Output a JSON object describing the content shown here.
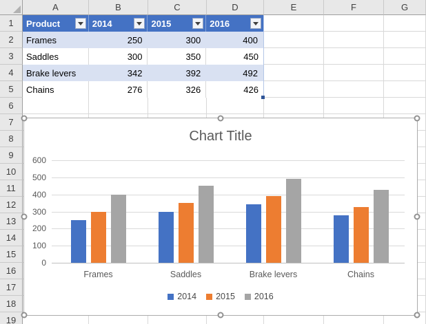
{
  "colors": {
    "table_header_bg": "#4472C4",
    "table_band_bg": "#D9E1F2",
    "table_border_accent": "#B4C6E7",
    "series_2014": "#4472C4",
    "series_2015": "#ED7D31",
    "series_2016": "#A5A5A5",
    "chart_text": "#595959",
    "sheet_header_bg": "#E8E8E8"
  },
  "spreadsheet": {
    "column_headers": [
      "A",
      "B",
      "C",
      "D",
      "E",
      "F",
      "G"
    ],
    "row_headers": [
      "1",
      "2",
      "3",
      "4",
      "5",
      "6",
      "7",
      "8",
      "9",
      "10",
      "11",
      "12",
      "13",
      "14",
      "15",
      "16",
      "17",
      "18",
      "19"
    ],
    "table": {
      "columns": [
        "Product",
        "2014",
        "2015",
        "2016"
      ],
      "filter_icon": "filter-dropdown-arrow",
      "rows": [
        {
          "name": "Frames",
          "values": [
            "250",
            "300",
            "400"
          ]
        },
        {
          "name": "Saddles",
          "values": [
            "300",
            "350",
            "450"
          ]
        },
        {
          "name": "Brake levers",
          "values": [
            "342",
            "392",
            "492"
          ]
        },
        {
          "name": "Chains",
          "values": [
            "276",
            "326",
            "426"
          ]
        }
      ]
    }
  },
  "chart_data": {
    "type": "bar",
    "title": "Chart Title",
    "categories": [
      "Frames",
      "Saddles",
      "Brake levers",
      "Chains"
    ],
    "series": [
      {
        "name": "2014",
        "color": "#4472C4",
        "values": [
          250,
          300,
          342,
          276
        ]
      },
      {
        "name": "2015",
        "color": "#ED7D31",
        "values": [
          300,
          350,
          392,
          326
        ]
      },
      {
        "name": "2016",
        "color": "#A5A5A5",
        "values": [
          400,
          450,
          492,
          426
        ]
      }
    ],
    "xlabel": "",
    "ylabel": "",
    "ylim": [
      0,
      600
    ],
    "yticks": [
      0,
      100,
      200,
      300,
      400,
      500,
      600
    ],
    "grid": true,
    "legend_position": "bottom",
    "selected": true
  }
}
